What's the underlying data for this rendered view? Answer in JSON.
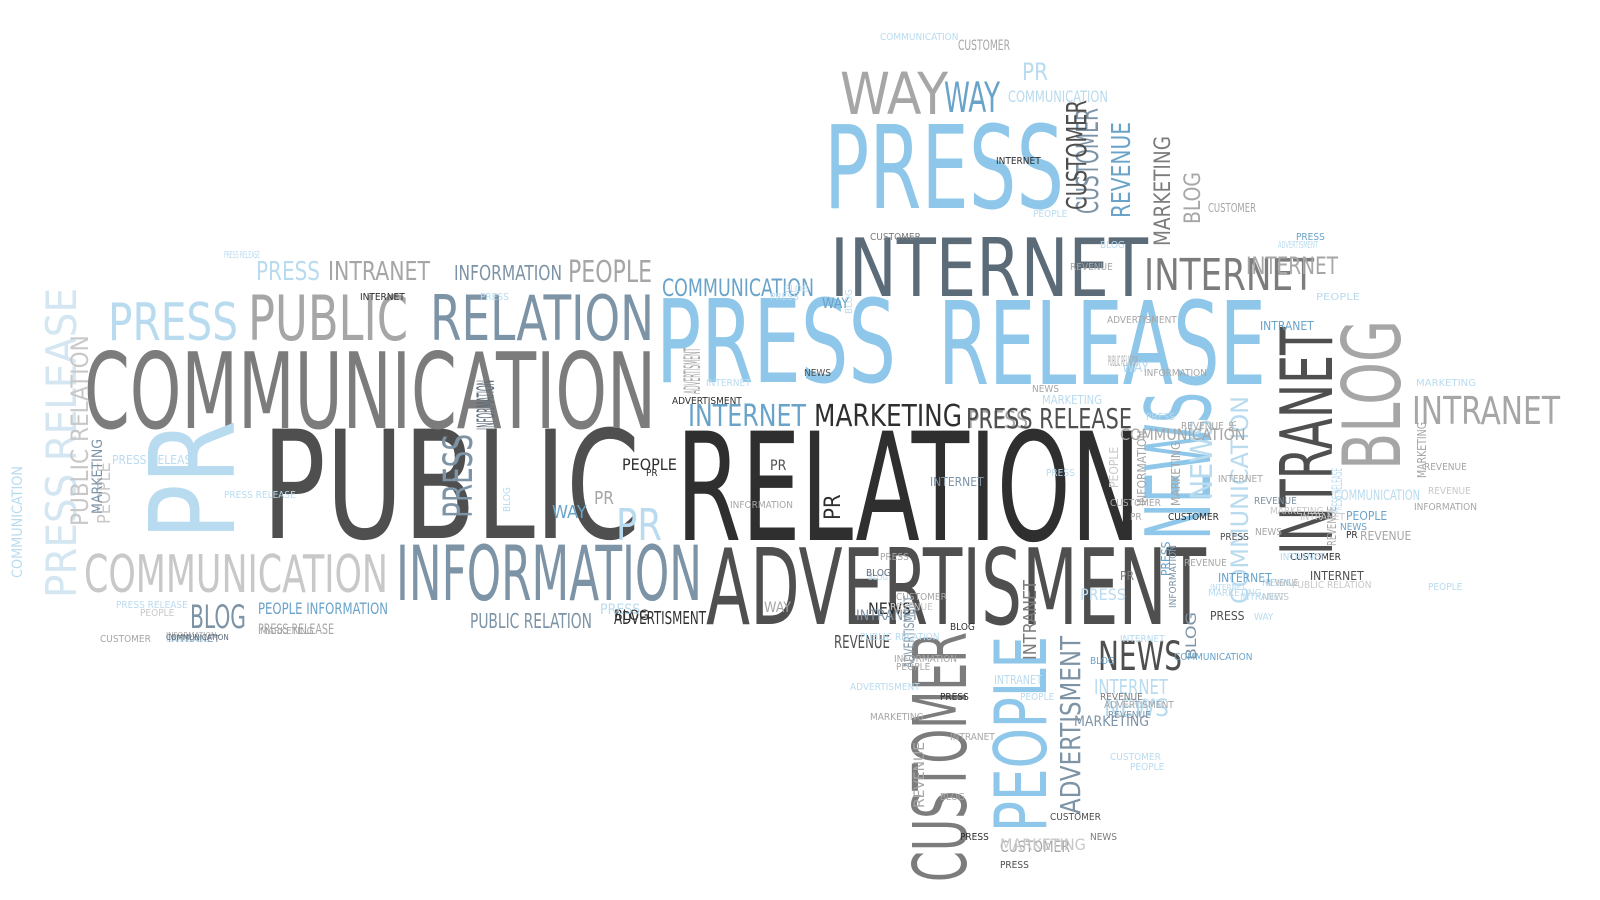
{
  "palette": {
    "black": "#2f2f2f",
    "dark": "#4f4f4f",
    "slate": "#5c6b78",
    "mid": "#7c7c7c",
    "grey": "#a6a6a6",
    "light": "#c8c8c8",
    "pale": "#dcdcdc",
    "blue": "#8ec7e9",
    "blue_mid": "#6aa3c9",
    "blue_dark": "#55809f",
    "blue_light": "#b9dbef",
    "blue_pale": "#d3e6f1",
    "steel": "#7d93a6",
    "steel_dark": "#4a6074"
  },
  "words": [
    {
      "text": "PUBLIC",
      "color": "dark"
    },
    {
      "text": "RELATION",
      "color": "black"
    },
    {
      "text": "PRESS",
      "color": "blue"
    },
    {
      "text": "RELEASE",
      "color": "blue"
    },
    {
      "text": "COMMUNICATION",
      "color": "mid"
    },
    {
      "text": "ADVERTISMENT",
      "color": "dark"
    },
    {
      "text": "INFORMATION",
      "color": "steel"
    },
    {
      "text": "PR",
      "color": "blue_light"
    },
    {
      "text": "PRESS",
      "color": "blue"
    },
    {
      "text": "INTERNET",
      "color": "slate"
    },
    {
      "text": "NEWS",
      "color": "blue"
    },
    {
      "text": "BLOG",
      "color": "grey"
    },
    {
      "text": "INTRANET",
      "color": "dark"
    },
    {
      "text": "PUBLIC",
      "color": "grey"
    },
    {
      "text": "RELATION",
      "color": "steel"
    },
    {
      "text": "PRESS",
      "color": "blue_light"
    },
    {
      "text": "WAY",
      "color": "grey"
    },
    {
      "text": "WAY",
      "color": "blue_mid"
    },
    {
      "text": "INTERNET",
      "color": "mid"
    },
    {
      "text": "INTRANET",
      "color": "grey"
    },
    {
      "text": "COMMUNICATION",
      "color": "light"
    },
    {
      "text": "PRESS RELEASE",
      "color": "blue_pale"
    },
    {
      "text": "CUSTOMER",
      "color": "steel"
    },
    {
      "text": "PEOPLE",
      "color": "blue"
    },
    {
      "text": "CUSTOMER",
      "color": "mid"
    },
    {
      "text": "REVENUE",
      "color": "blue_mid"
    },
    {
      "text": "MARKETING",
      "color": "mid"
    },
    {
      "text": "BLOG",
      "color": "grey"
    },
    {
      "text": "NEWS",
      "color": "dark"
    },
    {
      "text": "PRESS",
      "color": "grey"
    },
    {
      "text": "INTERNET",
      "color": "blue_mid"
    },
    {
      "text": "MARKETING",
      "color": "black"
    },
    {
      "text": "PRESS RELEASE",
      "color": "dark"
    },
    {
      "text": "COMMUNICATION",
      "color": "blue_mid"
    },
    {
      "text": "PRESS",
      "color": "blue_light"
    },
    {
      "text": "INTRANET",
      "color": "grey"
    },
    {
      "text": "INFORMATION",
      "color": "steel"
    },
    {
      "text": "PEOPLE",
      "color": "grey"
    },
    {
      "text": "BLOG",
      "color": "steel"
    },
    {
      "text": "PUBLIC RELATION",
      "color": "steel"
    },
    {
      "text": "ADVERTISMENT",
      "color": "black"
    },
    {
      "text": "PEOPLE INFORMATION",
      "color": "blue_mid"
    },
    {
      "text": "PRESS RELEASE",
      "color": "grey"
    },
    {
      "text": "REVENUE",
      "color": "dark"
    },
    {
      "text": "INTRANET",
      "color": "mid"
    },
    {
      "text": "PEOPLE",
      "color": "blue_light"
    },
    {
      "text": "CUSTOMER",
      "color": "grey"
    },
    {
      "text": "REVENUE",
      "color": "grey"
    },
    {
      "text": "INFORMATION",
      "color": "slate"
    },
    {
      "text": "PR",
      "color": "blue_light"
    },
    {
      "text": "PRESS",
      "color": "steel"
    },
    {
      "text": "PR",
      "color": "grey"
    },
    {
      "text": "COMMUNICATION",
      "color": "blue_light"
    },
    {
      "text": "ADVERTISMENT",
      "color": "steel"
    },
    {
      "text": "INTERNET",
      "color": "blue_light"
    },
    {
      "text": "NEWS",
      "color": "blue_light"
    },
    {
      "text": "COMMUNICATION",
      "color": "blue_light"
    },
    {
      "text": "INTERNET",
      "color": "grey"
    },
    {
      "text": "INTRANET",
      "color": "blue_light"
    },
    {
      "text": "REVENUE",
      "color": "grey"
    },
    {
      "text": "MARKETING",
      "color": "grey"
    },
    {
      "text": "CUSTOMER",
      "color": "grey"
    },
    {
      "text": "CUSTOMER",
      "color": "grey"
    },
    {
      "text": "MARKETING",
      "color": "blue_light"
    },
    {
      "text": "CUSTOMER",
      "color": "dark"
    },
    {
      "text": "PR",
      "color": "blue_light"
    },
    {
      "text": "COMMUNICATION",
      "color": "blue_light"
    },
    {
      "text": "PUBLIC RELATION",
      "color": "grey"
    },
    {
      "text": "NEWS",
      "color": "blue_light"
    },
    {
      "text": "REVENUE",
      "color": "grey"
    },
    {
      "text": "PEOPLE",
      "color": "blue_light"
    },
    {
      "text": "MARKETING",
      "color": "blue_light"
    },
    {
      "text": "PRESS RELEASE",
      "color": "blue_light"
    },
    {
      "text": "PEOPLE",
      "color": "blue_light"
    },
    {
      "text": "INTRANET",
      "color": "steel"
    },
    {
      "text": "INFORMATION",
      "color": "grey"
    },
    {
      "text": "MARKETING",
      "color": "grey"
    },
    {
      "text": "ADVERTISMENT",
      "color": "grey"
    },
    {
      "text": "NEWS",
      "color": "dark"
    },
    {
      "text": "PRESS",
      "color": "blue_mid"
    },
    {
      "text": "BLOG",
      "color": "steel"
    },
    {
      "text": "ADVERTISMENT",
      "color": "steel"
    },
    {
      "text": "INFORMATION",
      "color": "steel"
    },
    {
      "text": "MARKETING",
      "color": "steel"
    },
    {
      "text": "BLOG",
      "color": "blue_light"
    },
    {
      "text": "INTERNET",
      "color": "steel"
    },
    {
      "text": "WAY",
      "color": "blue_light"
    },
    {
      "text": "NEWS",
      "color": "blue_light"
    },
    {
      "text": "PR",
      "color": "grey"
    },
    {
      "text": "PRESS RELEASE",
      "color": "blue_light"
    },
    {
      "text": "PEOPLE",
      "color": "light"
    },
    {
      "text": "COMMUNICATION",
      "color": "blue_light"
    },
    {
      "text": "PUBLIC RELATION",
      "color": "light"
    },
    {
      "text": "PRESS RELEASE",
      "color": "blue_light"
    },
    {
      "text": "PEOPLE",
      "color": "light"
    },
    {
      "text": "MARKETING",
      "color": "steel"
    },
    {
      "text": "ADVERTISMENT",
      "color": "blue_light"
    },
    {
      "text": "INTERNET",
      "color": "blue_light"
    },
    {
      "text": "REVENUE",
      "color": "grey"
    },
    {
      "text": "MARKETING",
      "color": "blue_light"
    },
    {
      "text": "INFORMATION",
      "color": "grey"
    },
    {
      "text": "BLOG",
      "color": "blue_light"
    },
    {
      "text": "NEWS",
      "color": "grey"
    },
    {
      "text": "INTERNET",
      "color": "dark"
    },
    {
      "text": "PRESS",
      "color": "dark"
    },
    {
      "text": "INTRANET",
      "color": "blue_mid"
    },
    {
      "text": "INTERNET",
      "color": "blue_mid"
    },
    {
      "text": "PEOPLE",
      "color": "blue_mid"
    },
    {
      "text": "PR",
      "color": "mid"
    },
    {
      "text": "REVENUE",
      "color": "grey"
    },
    {
      "text": "NEWS",
      "color": "mid"
    },
    {
      "text": "CUSTOMER",
      "color": "black"
    },
    {
      "text": "PR",
      "color": "black"
    },
    {
      "text": "PR",
      "color": "dark"
    },
    {
      "text": "INFORMATION",
      "color": "grey"
    },
    {
      "text": "COMMUNICATION",
      "color": "slate"
    },
    {
      "text": "BLOG",
      "color": "blue_light"
    },
    {
      "text": "BLOG",
      "color": "slate"
    },
    {
      "text": "PRESS",
      "color": "blue_light"
    },
    {
      "text": "ADVERTISMENT",
      "color": "black"
    },
    {
      "text": "BLOG",
      "color": "black"
    },
    {
      "text": "PRESS",
      "color": "blue_mid"
    },
    {
      "text": "PR",
      "color": "black"
    },
    {
      "text": "WAY",
      "color": "blue_mid"
    },
    {
      "text": "NEWS",
      "color": "black"
    },
    {
      "text": "BLOG",
      "color": "blue_light"
    },
    {
      "text": "WAY",
      "color": "blue_light"
    },
    {
      "text": "PRESS",
      "color": "blue_light"
    },
    {
      "text": "PEOPLE",
      "color": "black"
    },
    {
      "text": "INTRANET",
      "color": "steel"
    },
    {
      "text": "COMMUNICATION",
      "color": "grey"
    },
    {
      "text": "PRESS",
      "color": "blue_light"
    },
    {
      "text": "CUSTOMER",
      "color": "black"
    },
    {
      "text": "WAY",
      "color": "grey"
    },
    {
      "text": "PRESS",
      "color": "dark"
    },
    {
      "text": "NEWS",
      "color": "blue_mid"
    },
    {
      "text": "PRESS",
      "color": "blue_light"
    },
    {
      "text": "PR",
      "color": "black"
    },
    {
      "text": "INTERNET",
      "color": "blue_light"
    },
    {
      "text": "WAY",
      "color": "blue_mid"
    },
    {
      "text": "BLOG",
      "color": "blue_mid"
    },
    {
      "text": "COMMUNICATION",
      "color": "blue_mid"
    },
    {
      "text": "INTERNET",
      "color": "blue_light"
    },
    {
      "text": "INTRANET",
      "color": "blue_light"
    },
    {
      "text": "MARKETING",
      "color": "light"
    },
    {
      "text": "COMMUNICATION",
      "color": "blue_light"
    },
    {
      "text": "REVENUE",
      "color": "grey"
    },
    {
      "text": "INFORMATION",
      "color": "grey"
    },
    {
      "text": "PRESS RELEASE",
      "color": "blue_light"
    },
    {
      "text": "MARKETING",
      "color": "grey"
    },
    {
      "text": "CUSTOMER",
      "color": "grey"
    },
    {
      "text": "PEOPLE",
      "color": "light"
    },
    {
      "text": "PRESS RELEASE",
      "color": "blue_light"
    },
    {
      "text": "CUSTOMER",
      "color": "grey"
    },
    {
      "text": "MARKETING",
      "color": "blue_light"
    },
    {
      "text": "REVENUE",
      "color": "steel"
    },
    {
      "text": "REVENUE",
      "color": "light"
    },
    {
      "text": "INTRANET",
      "color": "blue_light"
    },
    {
      "text": "NEWS",
      "color": "light"
    },
    {
      "text": "INTRANET",
      "color": "light"
    },
    {
      "text": "MARKETING",
      "color": "light"
    },
    {
      "text": "REVENUE",
      "color": "light"
    },
    {
      "text": "CUSTOMER",
      "color": "mid"
    },
    {
      "text": "BLOG",
      "color": "blue_light"
    },
    {
      "text": "PRESS",
      "color": "blue_light"
    },
    {
      "text": "PRESS",
      "color": "blue_light"
    },
    {
      "text": "INTERNET",
      "color": "black"
    },
    {
      "text": "PRESS",
      "color": "black"
    },
    {
      "text": "PEOPLE",
      "color": "blue_light"
    },
    {
      "text": "REVENUE",
      "color": "mid"
    },
    {
      "text": "ADVERTISMENT",
      "color": "blue_light"
    },
    {
      "text": "PUBLIC RELATION",
      "color": "blue_light"
    },
    {
      "text": "ADVERTISMENT",
      "color": "grey"
    },
    {
      "text": "REVENUE",
      "color": "steel"
    },
    {
      "text": "PRESS",
      "color": "black"
    },
    {
      "text": "BLOG",
      "color": "grey"
    },
    {
      "text": "INTRANET",
      "color": "grey"
    },
    {
      "text": "MARKETING",
      "color": "grey"
    },
    {
      "text": "PEOPLE",
      "color": "grey"
    },
    {
      "text": "PRESS",
      "color": "grey"
    },
    {
      "text": "CUSTOMER",
      "color": "dark"
    },
    {
      "text": "PRESS",
      "color": "dark"
    },
    {
      "text": "PEOPLE",
      "color": "blue_light"
    },
    {
      "text": "CUSTOMER",
      "color": "blue_light"
    },
    {
      "text": "INFORMATION",
      "color": "grey"
    },
    {
      "text": "CUSTOMER",
      "color": "grey"
    },
    {
      "text": "PR",
      "color": "grey"
    },
    {
      "text": "BLOG",
      "color": "black"
    },
    {
      "text": "INTERNET",
      "color": "black"
    },
    {
      "text": "PEOPLE",
      "color": "blue_light"
    },
    {
      "text": "REVENUE",
      "color": "grey"
    },
    {
      "text": "ADVERTISMENT",
      "color": "grey"
    },
    {
      "text": "INFORMATION",
      "color": "grey"
    },
    {
      "text": "REVENUE",
      "color": "grey"
    },
    {
      "text": "INTERNET",
      "color": "grey"
    },
    {
      "text": "NEWS",
      "color": "grey"
    },
    {
      "text": "PUBLIC RELATION",
      "color": "light"
    }
  ]
}
